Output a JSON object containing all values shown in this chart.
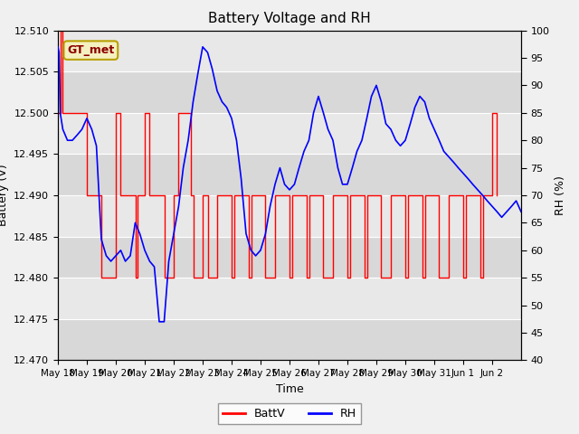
{
  "title": "Battery Voltage and RH",
  "xlabel": "Time",
  "ylabel_left": "Battery (V)",
  "ylabel_right": "RH (%)",
  "station_label": "GT_met",
  "ylim_left": [
    12.47,
    12.51
  ],
  "ylim_right": [
    40,
    100
  ],
  "yticks_left": [
    12.47,
    12.475,
    12.48,
    12.485,
    12.49,
    12.495,
    12.5,
    12.505,
    12.51
  ],
  "yticks_right": [
    40,
    45,
    50,
    55,
    60,
    65,
    70,
    75,
    80,
    85,
    90,
    95,
    100
  ],
  "battv_color": "red",
  "rh_color": "blue",
  "fig_facecolor": "#f0f0f0",
  "plot_facecolor": "#e8e8e8",
  "band_colors": [
    "#d8d8d8",
    "#e8e8e8"
  ],
  "start_date": [
    2024,
    5,
    18
  ],
  "end_date": [
    2024,
    6,
    3
  ],
  "battv_times_days": [
    0.0,
    0.08,
    0.17,
    0.5,
    1.0,
    1.5,
    2.0,
    2.08,
    2.17,
    2.5,
    2.6,
    2.7,
    2.75,
    3.0,
    3.08,
    3.17,
    3.5,
    3.6,
    3.7,
    4.0,
    4.08,
    4.17,
    4.5,
    4.6,
    4.7,
    5.0,
    5.08,
    5.17,
    5.2,
    5.5,
    5.6,
    5.7,
    6.0,
    6.08,
    6.17,
    6.5,
    6.6,
    6.7,
    7.0,
    7.08,
    7.17,
    7.5,
    7.6,
    7.7,
    8.0,
    8.08,
    8.17,
    8.5,
    8.6,
    8.7,
    9.0,
    9.08,
    9.17,
    9.5,
    9.6,
    9.7,
    10.0,
    10.08,
    10.17,
    10.5,
    10.6,
    10.7,
    11.0,
    11.08,
    11.17,
    11.5,
    11.6,
    11.7,
    12.0,
    12.08,
    12.17,
    12.5,
    12.6,
    12.7,
    13.0,
    13.08,
    13.17,
    13.5,
    13.6,
    13.7,
    14.0,
    14.08,
    14.17,
    14.5,
    14.6,
    14.7,
    15.0,
    15.08,
    15.17
  ],
  "battv_values": [
    12.5,
    12.51,
    12.5,
    12.5,
    12.49,
    12.48,
    12.5,
    12.5,
    12.49,
    12.49,
    12.49,
    12.48,
    12.49,
    12.5,
    12.5,
    12.49,
    12.49,
    12.49,
    12.48,
    12.49,
    12.49,
    12.5,
    12.5,
    12.49,
    12.48,
    12.49,
    12.49,
    12.49,
    12.48,
    12.49,
    12.49,
    12.49,
    12.48,
    12.49,
    12.49,
    12.49,
    12.48,
    12.49,
    12.49,
    12.49,
    12.48,
    12.49,
    12.49,
    12.49,
    12.48,
    12.49,
    12.49,
    12.49,
    12.48,
    12.49,
    12.49,
    12.49,
    12.48,
    12.49,
    12.49,
    12.49,
    12.48,
    12.49,
    12.49,
    12.49,
    12.48,
    12.49,
    12.49,
    12.49,
    12.48,
    12.49,
    12.49,
    12.49,
    12.48,
    12.49,
    12.49,
    12.49,
    12.48,
    12.49,
    12.49,
    12.49,
    12.48,
    12.49,
    12.49,
    12.49,
    12.48,
    12.49,
    12.49,
    12.49,
    12.48,
    12.49,
    12.5,
    12.5,
    12.49
  ],
  "rh_times_days": [
    0.0,
    0.04,
    0.08,
    0.17,
    0.25,
    0.33,
    0.5,
    0.67,
    0.83,
    1.0,
    1.17,
    1.33,
    1.5,
    1.67,
    1.83,
    2.0,
    2.17,
    2.33,
    2.5,
    2.67,
    2.83,
    3.0,
    3.17,
    3.33,
    3.5,
    3.67,
    3.83,
    4.0,
    4.17,
    4.33,
    4.5,
    4.67,
    4.83,
    5.0,
    5.17,
    5.33,
    5.5,
    5.67,
    5.83,
    6.0,
    6.17,
    6.33,
    6.5,
    6.67,
    6.83,
    7.0,
    7.17,
    7.33,
    7.5,
    7.67,
    7.83,
    8.0,
    8.17,
    8.33,
    8.5,
    8.67,
    8.83,
    9.0,
    9.17,
    9.33,
    9.5,
    9.67,
    9.83,
    10.0,
    10.17,
    10.33,
    10.5,
    10.67,
    10.83,
    11.0,
    11.17,
    11.33,
    11.5,
    11.67,
    11.83,
    12.0,
    12.17,
    12.33,
    12.5,
    12.67,
    12.83,
    13.0,
    13.17,
    13.33,
    13.5,
    13.67,
    13.83,
    14.0,
    14.17,
    14.33,
    14.5,
    14.67,
    14.83,
    15.0,
    15.17,
    15.33,
    15.5,
    15.67,
    15.83,
    16.0
  ],
  "rh_values": [
    97,
    96,
    85,
    82,
    81,
    80,
    80,
    81,
    82,
    84,
    82,
    79,
    62,
    59,
    58,
    59,
    60,
    58,
    59,
    65,
    63,
    60,
    58,
    57,
    47,
    47,
    58,
    63,
    68,
    75,
    80,
    87,
    92,
    97,
    96,
    93,
    89,
    87,
    86,
    84,
    80,
    73,
    63,
    60,
    59,
    60,
    63,
    68,
    72,
    75,
    72,
    71,
    72,
    75,
    78,
    80,
    85,
    88,
    85,
    82,
    80,
    75,
    72,
    72,
    75,
    78,
    80,
    84,
    88,
    90,
    87,
    83,
    82,
    80,
    79,
    80,
    83,
    86,
    88,
    87,
    84,
    82,
    80,
    78,
    77,
    76,
    75,
    74,
    73,
    72,
    71,
    70,
    69,
    68,
    67,
    66,
    67,
    68,
    69,
    67
  ]
}
